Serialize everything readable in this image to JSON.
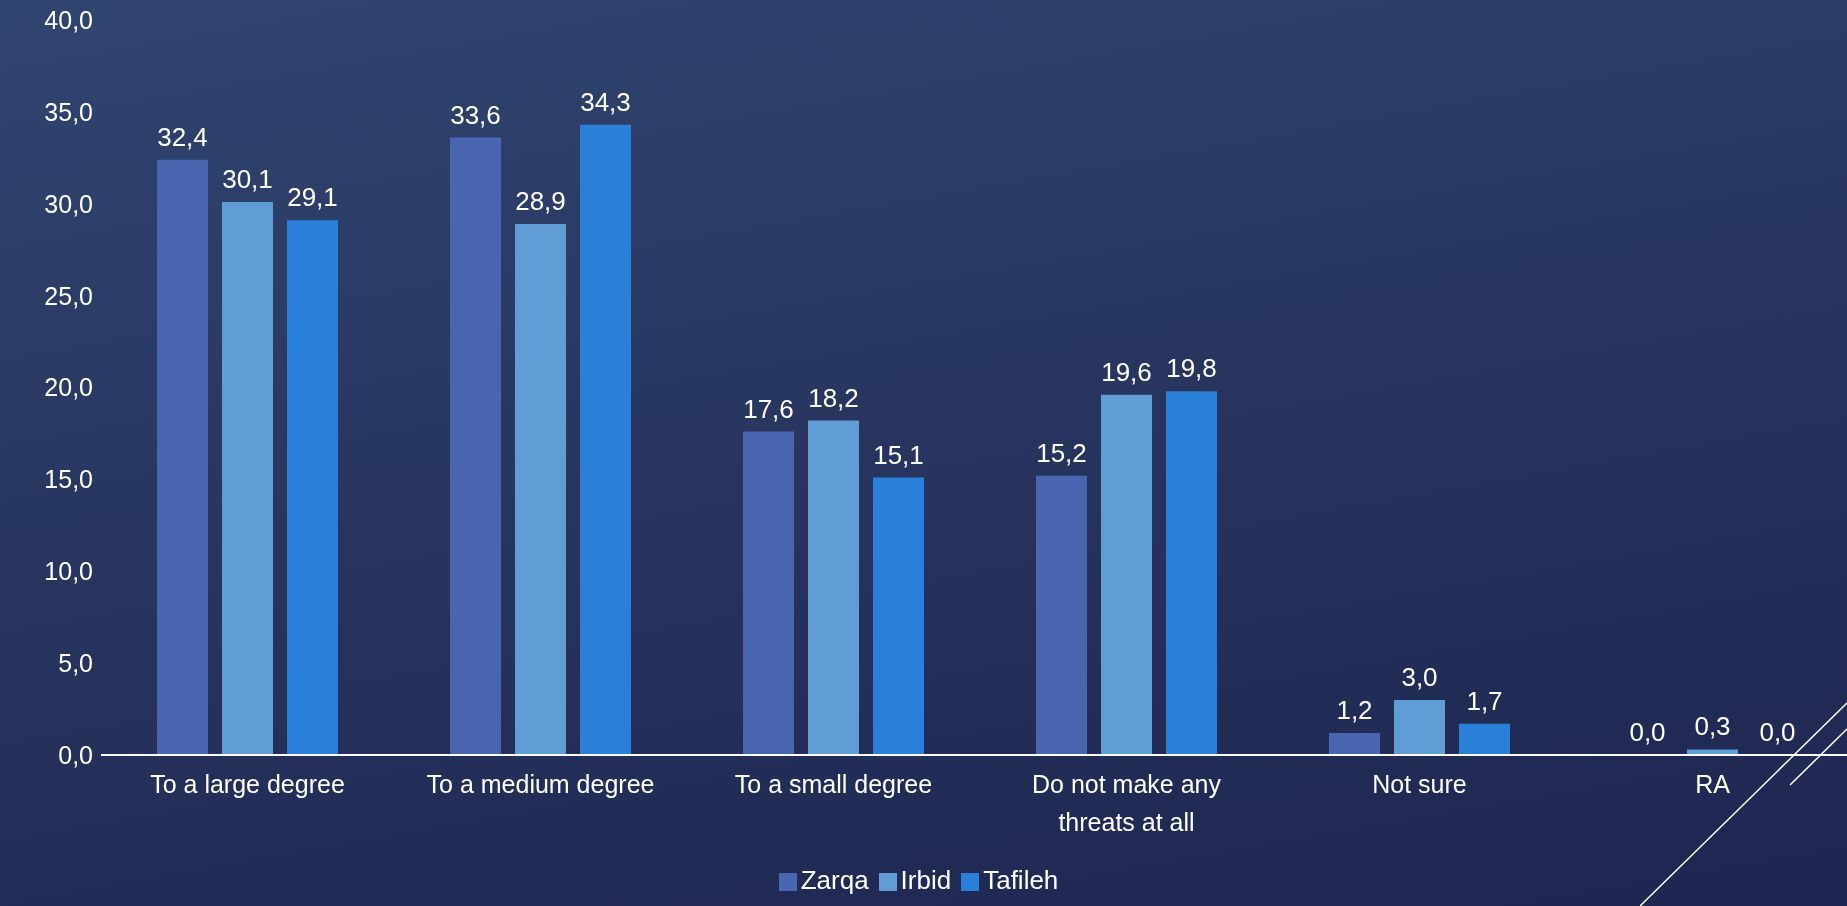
{
  "chart_data": {
    "type": "bar",
    "categories": [
      "To a large degree",
      "To a medium degree",
      "To a small degree",
      "Do not make any threats at all",
      "Not sure",
      "RA"
    ],
    "series": [
      {
        "name": "Zarqa",
        "color": "#4a65b0",
        "values": [
          32.4,
          33.6,
          17.6,
          15.2,
          1.2,
          0.0
        ],
        "value_labels": [
          "32,4",
          "33,6",
          "17,6",
          "15,2",
          "1,2",
          "0,0"
        ]
      },
      {
        "name": "Irbid",
        "color": "#5f9dd4",
        "values": [
          30.1,
          28.9,
          18.2,
          19.6,
          3.0,
          0.3
        ],
        "value_labels": [
          "30,1",
          "28,9",
          "18,2",
          "19,6",
          "3,0",
          "0,3"
        ]
      },
      {
        "name": "Tafileh",
        "color": "#2a7fd8",
        "values": [
          29.1,
          34.3,
          15.1,
          19.8,
          1.7,
          0.0
        ],
        "value_labels": [
          "29,1",
          "34,3",
          "15,1",
          "19,8",
          "1,7",
          "0,0"
        ]
      }
    ],
    "ylim": [
      0,
      40
    ],
    "yticks": [
      {
        "value": 0,
        "label": "0,0"
      },
      {
        "value": 5,
        "label": "5,0"
      },
      {
        "value": 10,
        "label": "10,0"
      },
      {
        "value": 15,
        "label": "15,0"
      },
      {
        "value": 20,
        "label": "20,0"
      },
      {
        "value": 25,
        "label": "25,0"
      },
      {
        "value": 30,
        "label": "30,0"
      },
      {
        "value": 35,
        "label": "35,0"
      },
      {
        "value": 40,
        "label": "40,0"
      }
    ],
    "grid": false,
    "legend": "bottom"
  }
}
